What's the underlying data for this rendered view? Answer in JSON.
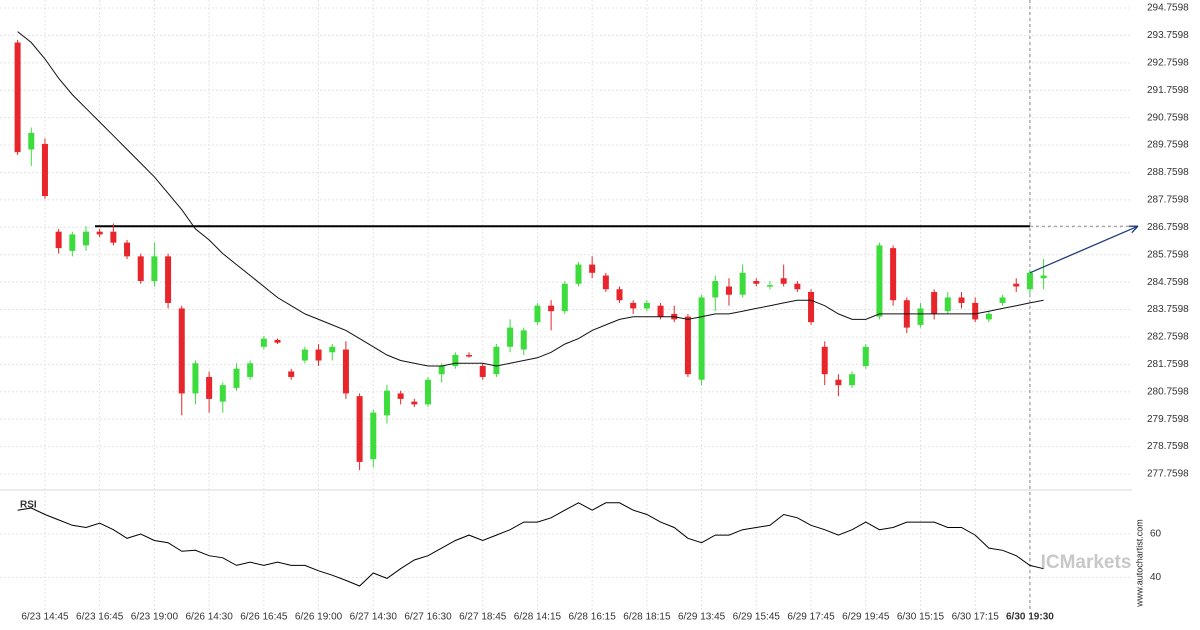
{
  "chart_data": {
    "type": "candlestick",
    "x": [
      null,
      null,
      "6/23 14:45",
      null,
      null,
      null,
      "6/23 16:45",
      null,
      null,
      null,
      "6/23 19:00",
      null,
      null,
      null,
      "6/26 14:30",
      null,
      null,
      null,
      "6/26 16:45",
      null,
      null,
      null,
      "6/26 19:00",
      null,
      null,
      null,
      "6/27 14:30",
      null,
      null,
      null,
      "6/27 16:30",
      null,
      null,
      null,
      "6/27 18:45",
      null,
      null,
      null,
      "6/28 14:15",
      null,
      null,
      null,
      "6/28 16:15",
      null,
      null,
      null,
      "6/28 18:15",
      null,
      null,
      null,
      "6/29 13:45",
      null,
      null,
      null,
      "6/29 15:45",
      null,
      null,
      null,
      "6/29 17:45",
      null,
      null,
      null,
      "6/29 19:45",
      null,
      null,
      null,
      "6/30 15:15",
      null,
      null,
      null,
      "6/30 17:15",
      null,
      null,
      null,
      "6/30 19:30",
      null
    ],
    "open": [
      293.5,
      289.6,
      289.8,
      286.6,
      285.9,
      286.1,
      286.6,
      286.6,
      286.2,
      285.7,
      284.8,
      285.7,
      283.8,
      280.7,
      281.3,
      280.4,
      280.9,
      281.3,
      282.4,
      282.65,
      281.5,
      281.9,
      282.3,
      282.2,
      282.3,
      280.6,
      278.3,
      279.9,
      280.7,
      280.4,
      280.3,
      281.4,
      281.7,
      282.1,
      281.7,
      281.4,
      282.4,
      282.3,
      283.3,
      283.9,
      283.7,
      284.7,
      285.4,
      285.0,
      284.5,
      284.0,
      283.8,
      283.9,
      283.6,
      283.5,
      281.2,
      284.2,
      284.6,
      284.3,
      284.8,
      284.6,
      284.9,
      284.7,
      284.4,
      282.4,
      281.2,
      281.0,
      281.7,
      283.5,
      286.0,
      284.1,
      283.2,
      284.4,
      283.7,
      284.2,
      284.0,
      283.4,
      284.0,
      284.7,
      284.5,
      284.9
    ],
    "high": [
      293.6,
      290.4,
      290.0,
      286.7,
      286.6,
      286.8,
      286.7,
      286.9,
      286.3,
      285.8,
      286.2,
      285.8,
      283.9,
      281.9,
      281.5,
      281.1,
      281.8,
      281.9,
      282.8,
      282.7,
      281.6,
      282.4,
      282.5,
      282.5,
      282.6,
      280.7,
      280.1,
      281.0,
      280.8,
      280.5,
      281.3,
      281.8,
      282.2,
      282.2,
      281.8,
      282.5,
      283.4,
      283.1,
      284.0,
      284.1,
      284.8,
      285.5,
      285.7,
      285.1,
      284.6,
      284.1,
      284.1,
      284.0,
      283.9,
      283.6,
      284.3,
      285.0,
      284.9,
      285.4,
      284.9,
      284.8,
      285.4,
      284.8,
      284.5,
      282.6,
      281.4,
      281.5,
      282.5,
      286.2,
      286.1,
      284.2,
      284.0,
      284.5,
      284.4,
      284.4,
      284.2,
      283.7,
      284.3,
      284.9,
      285.2,
      285.6
    ],
    "low": [
      289.4,
      289.0,
      287.8,
      285.8,
      285.7,
      285.9,
      286.4,
      286.1,
      285.6,
      284.7,
      284.6,
      283.8,
      279.9,
      280.3,
      280.0,
      280.0,
      280.8,
      281.2,
      282.3,
      282.5,
      281.2,
      281.8,
      281.7,
      281.9,
      280.5,
      277.9,
      278.0,
      279.6,
      280.3,
      280.2,
      280.2,
      281.1,
      281.6,
      282.0,
      281.2,
      281.3,
      282.2,
      282.1,
      283.2,
      283.0,
      283.6,
      284.6,
      284.9,
      284.4,
      284.0,
      283.6,
      283.7,
      283.4,
      283.3,
      281.3,
      281.0,
      283.7,
      283.9,
      284.2,
      284.6,
      284.5,
      284.6,
      284.4,
      283.2,
      281.0,
      280.6,
      280.9,
      281.6,
      283.4,
      283.9,
      282.9,
      283.1,
      283.4,
      283.6,
      283.8,
      283.3,
      283.3,
      283.9,
      284.4,
      284.3,
      284.5
    ],
    "close": [
      289.5,
      290.2,
      287.9,
      286.0,
      286.5,
      286.6,
      286.5,
      286.2,
      285.7,
      284.8,
      285.7,
      284.0,
      280.7,
      281.8,
      280.5,
      281.0,
      281.6,
      281.8,
      282.7,
      282.55,
      281.3,
      282.3,
      281.9,
      282.4,
      280.7,
      278.2,
      280.0,
      280.8,
      280.5,
      280.3,
      281.2,
      281.7,
      282.1,
      282.05,
      281.3,
      282.4,
      283.1,
      283.0,
      283.9,
      283.7,
      284.7,
      285.4,
      285.1,
      284.5,
      284.1,
      283.8,
      284.0,
      283.5,
      283.4,
      281.4,
      284.2,
      284.8,
      284.3,
      285.1,
      284.7,
      284.65,
      284.7,
      284.5,
      283.3,
      281.4,
      281.0,
      281.4,
      282.4,
      286.1,
      284.1,
      283.1,
      283.8,
      283.6,
      284.2,
      284.0,
      283.4,
      283.6,
      284.2,
      284.6,
      285.1,
      285.0
    ],
    "up_color": "#3cdc3c",
    "down_color": "#e8252b",
    "ylim": [
      277.7598,
      294.7598
    ],
    "yticks": [
      294.7598,
      293.7598,
      292.7598,
      291.7598,
      290.7598,
      289.7598,
      288.7598,
      287.7598,
      286.7598,
      285.7598,
      284.7598,
      283.7598,
      282.7598,
      281.7598,
      280.7598,
      279.7598,
      278.7598,
      277.7598
    ],
    "grid": true,
    "ma": {
      "color": "#111111",
      "values": [
        293.9,
        293.5,
        292.9,
        292.2,
        291.6,
        291.1,
        290.6,
        290.1,
        289.6,
        289.1,
        288.6,
        288.0,
        287.4,
        286.7,
        286.3,
        285.8,
        285.4,
        285.0,
        284.6,
        284.2,
        283.9,
        283.6,
        283.4,
        283.2,
        283.0,
        282.7,
        282.4,
        282.1,
        281.9,
        281.8,
        281.7,
        281.7,
        281.8,
        281.8,
        281.8,
        281.7,
        281.8,
        281.9,
        282.0,
        282.2,
        282.5,
        282.7,
        283.0,
        283.2,
        283.4,
        283.5,
        283.5,
        283.5,
        283.5,
        283.4,
        283.5,
        283.6,
        283.6,
        283.7,
        283.8,
        283.9,
        284.0,
        284.1,
        284.1,
        283.9,
        283.6,
        283.4,
        283.4,
        283.6,
        283.6,
        283.6,
        283.6,
        283.6,
        283.6,
        283.6,
        283.6,
        283.7,
        283.8,
        283.9,
        284.0,
        284.1
      ]
    },
    "resistance": {
      "value": 286.8,
      "color": "#000000"
    },
    "forecast": {
      "values": [
        285.1,
        286.8
      ],
      "color": "#1f3a7a"
    },
    "rsi": {
      "label": "RSI",
      "color": "#000000",
      "ylim": [
        24,
        78
      ],
      "yticks": [
        60,
        40
      ],
      "values": [
        71,
        72,
        69,
        66.5,
        64,
        63,
        65,
        62,
        58,
        60,
        57,
        56,
        52,
        52.5,
        50,
        49,
        45.5,
        47,
        45.5,
        47,
        45.5,
        45.5,
        43,
        41,
        38.6,
        36,
        42,
        39.5,
        44,
        48,
        50,
        53.5,
        57,
        59.5,
        57,
        59.5,
        62,
        65.5,
        65.5,
        67.5,
        71,
        74.4,
        71,
        74.4,
        74.4,
        71,
        69,
        65.5,
        63,
        58,
        56,
        59.5,
        59.5,
        62,
        63,
        64,
        69,
        67.5,
        64,
        62,
        59.5,
        62,
        65.5,
        62,
        63,
        65.5,
        65.5,
        65.5,
        63,
        63,
        59.5,
        53.5,
        52.5,
        50,
        45.5,
        44
      ]
    },
    "watermark": "ICMarkets",
    "credit": "www.autochartist.com"
  }
}
